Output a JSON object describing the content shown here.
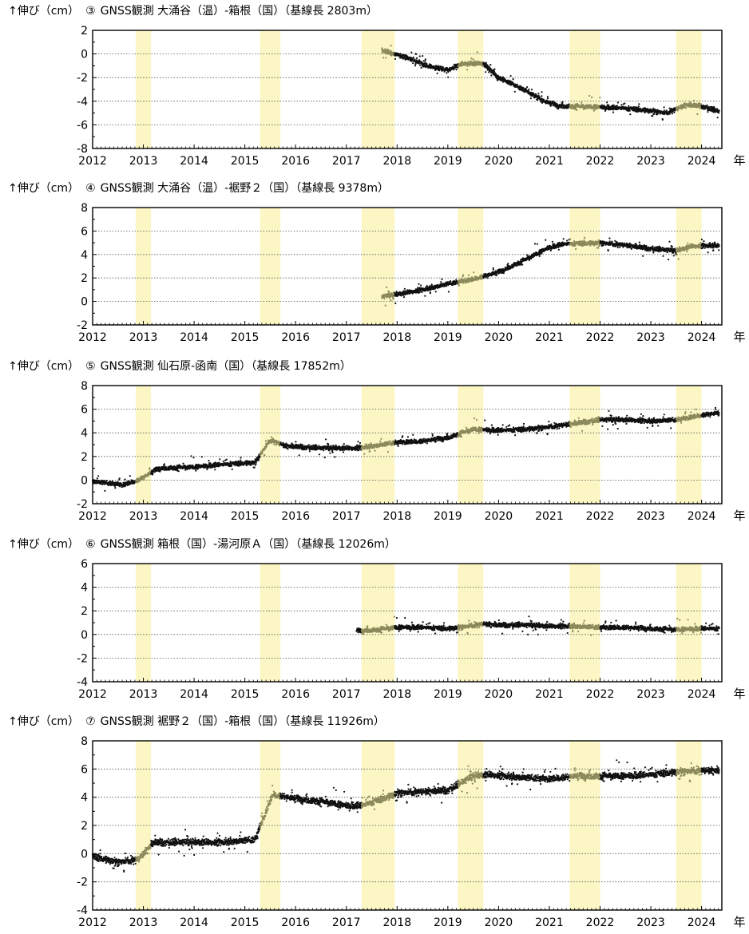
{
  "chart_data": [
    {
      "type": "scatter",
      "number": "③",
      "title": "GNSS観測 大涌谷（温）-箱根（国）（基線長 2803m）",
      "ylabel": "↑伸び（cm）",
      "xlabel": "年",
      "xlim": [
        2012,
        2024.4
      ],
      "ylim": [
        -8,
        2
      ],
      "yticks": [
        2,
        0,
        -2,
        -4,
        -6,
        -8
      ],
      "xticks": [
        2012,
        2013,
        2014,
        2015,
        2016,
        2017,
        2018,
        2019,
        2020,
        2021,
        2022,
        2023,
        2024
      ],
      "grid": "horizontal dotted",
      "highlight_periods": [
        [
          2012.85,
          2013.15
        ],
        [
          2015.3,
          2015.7
        ],
        [
          2017.3,
          2017.95
        ],
        [
          2019.2,
          2019.7
        ],
        [
          2021.4,
          2022.0
        ],
        [
          2023.5,
          2024.0
        ]
      ],
      "series": [
        {
          "trend": [
            [
              2017.7,
              0.3
            ],
            [
              2018.2,
              -0.3
            ],
            [
              2018.6,
              -1.0
            ],
            [
              2019.0,
              -1.4
            ],
            [
              2019.3,
              -0.8
            ],
            [
              2019.7,
              -0.8
            ],
            [
              2020.0,
              -2.0
            ],
            [
              2020.5,
              -3.0
            ],
            [
              2020.9,
              -4.0
            ],
            [
              2021.2,
              -4.4
            ],
            [
              2022.0,
              -4.5
            ],
            [
              2022.5,
              -4.6
            ],
            [
              2023.0,
              -4.8
            ],
            [
              2023.3,
              -5.0
            ],
            [
              2023.7,
              -4.3
            ],
            [
              2024.0,
              -4.4
            ],
            [
              2024.35,
              -4.9
            ]
          ]
        }
      ]
    },
    {
      "type": "scatter",
      "number": "④",
      "title": "GNSS観測 大涌谷（温）-裾野２（国）（基線長 9378m）",
      "ylabel": "↑伸び（cm）",
      "xlabel": "年",
      "xlim": [
        2012,
        2024.4
      ],
      "ylim": [
        -2,
        8
      ],
      "yticks": [
        8,
        6,
        4,
        2,
        0,
        -2
      ],
      "xticks": [
        2012,
        2013,
        2014,
        2015,
        2016,
        2017,
        2018,
        2019,
        2020,
        2021,
        2022,
        2023,
        2024
      ],
      "grid": "horizontal dotted",
      "highlight_periods": [
        [
          2012.85,
          2013.15
        ],
        [
          2015.3,
          2015.7
        ],
        [
          2017.3,
          2017.95
        ],
        [
          2019.2,
          2019.7
        ],
        [
          2021.4,
          2022.0
        ],
        [
          2023.5,
          2024.0
        ]
      ],
      "series": [
        {
          "trend": [
            [
              2017.7,
              0.4
            ],
            [
              2018.0,
              0.6
            ],
            [
              2018.5,
              1.0
            ],
            [
              2019.0,
              1.5
            ],
            [
              2019.5,
              1.9
            ],
            [
              2020.0,
              2.5
            ],
            [
              2020.5,
              3.5
            ],
            [
              2021.0,
              4.6
            ],
            [
              2021.3,
              4.9
            ],
            [
              2022.0,
              5.0
            ],
            [
              2022.5,
              4.8
            ],
            [
              2023.0,
              4.5
            ],
            [
              2023.5,
              4.3
            ],
            [
              2023.8,
              4.7
            ],
            [
              2024.35,
              4.8
            ]
          ]
        }
      ]
    },
    {
      "type": "scatter",
      "number": "⑤",
      "title": "GNSS観測 仙石原-函南（国）（基線長 17852m）",
      "ylabel": "↑伸び（cm）",
      "xlabel": "年",
      "xlim": [
        2012,
        2024.4
      ],
      "ylim": [
        -2,
        8
      ],
      "yticks": [
        8,
        6,
        4,
        2,
        0,
        -2
      ],
      "xticks": [
        2012,
        2013,
        2014,
        2015,
        2016,
        2017,
        2018,
        2019,
        2020,
        2021,
        2022,
        2023,
        2024
      ],
      "grid": "horizontal dotted",
      "highlight_periods": [
        [
          2012.85,
          2013.15
        ],
        [
          2015.3,
          2015.7
        ],
        [
          2017.3,
          2017.95
        ],
        [
          2019.2,
          2019.7
        ],
        [
          2021.4,
          2022.0
        ],
        [
          2023.5,
          2024.0
        ]
      ],
      "series": [
        {
          "trend": [
            [
              2012.0,
              -0.1
            ],
            [
              2012.6,
              -0.4
            ],
            [
              2012.9,
              0.0
            ],
            [
              2013.3,
              1.0
            ],
            [
              2014.0,
              1.1
            ],
            [
              2014.5,
              1.3
            ],
            [
              2015.2,
              1.5
            ],
            [
              2015.5,
              3.4
            ],
            [
              2015.8,
              2.9
            ],
            [
              2016.5,
              2.7
            ],
            [
              2017.2,
              2.7
            ],
            [
              2017.7,
              3.0
            ],
            [
              2018.0,
              3.2
            ],
            [
              2018.5,
              3.3
            ],
            [
              2019.0,
              3.6
            ],
            [
              2019.5,
              4.3
            ],
            [
              2020.0,
              4.2
            ],
            [
              2020.5,
              4.3
            ],
            [
              2021.0,
              4.5
            ],
            [
              2021.5,
              4.8
            ],
            [
              2022.0,
              5.1
            ],
            [
              2022.5,
              5.1
            ],
            [
              2023.0,
              5.0
            ],
            [
              2023.5,
              5.1
            ],
            [
              2024.0,
              5.5
            ],
            [
              2024.35,
              5.7
            ]
          ]
        }
      ]
    },
    {
      "type": "scatter",
      "number": "⑥",
      "title": "GNSS観測 箱根（国）-湯河原Ａ（国）（基線長 12026m）",
      "ylabel": "↑伸び（cm）",
      "xlabel": "年",
      "xlim": [
        2012,
        2024.4
      ],
      "ylim": [
        -4,
        6
      ],
      "yticks": [
        6,
        4,
        2,
        0,
        -2,
        -4
      ],
      "xticks": [
        2012,
        2013,
        2014,
        2015,
        2016,
        2017,
        2018,
        2019,
        2020,
        2021,
        2022,
        2023,
        2024
      ],
      "grid": "horizontal dotted",
      "highlight_periods": [
        [
          2012.85,
          2013.15
        ],
        [
          2015.3,
          2015.7
        ],
        [
          2017.3,
          2017.95
        ],
        [
          2019.2,
          2019.7
        ],
        [
          2021.4,
          2022.0
        ],
        [
          2023.5,
          2024.0
        ]
      ],
      "series": [
        {
          "trend": [
            [
              2017.2,
              0.3
            ],
            [
              2017.6,
              0.4
            ],
            [
              2018.0,
              0.6
            ],
            [
              2018.5,
              0.6
            ],
            [
              2019.0,
              0.5
            ],
            [
              2019.4,
              0.7
            ],
            [
              2019.7,
              0.9
            ],
            [
              2020.0,
              0.8
            ],
            [
              2020.5,
              0.8
            ],
            [
              2021.0,
              0.7
            ],
            [
              2021.5,
              0.7
            ],
            [
              2022.0,
              0.6
            ],
            [
              2022.5,
              0.6
            ],
            [
              2023.0,
              0.5
            ],
            [
              2023.5,
              0.4
            ],
            [
              2024.0,
              0.5
            ],
            [
              2024.35,
              0.5
            ]
          ]
        }
      ]
    },
    {
      "type": "scatter",
      "number": "⑦",
      "title": "GNSS観測 裾野２（国）-箱根（国）（基線長 11926m）",
      "ylabel": "↑伸び（cm）",
      "xlabel": "年",
      "xlim": [
        2012,
        2024.4
      ],
      "ylim": [
        -4,
        8
      ],
      "yticks": [
        8,
        6,
        4,
        2,
        0,
        -2,
        -4
      ],
      "xticks": [
        2012,
        2013,
        2014,
        2015,
        2016,
        2017,
        2018,
        2019,
        2020,
        2021,
        2022,
        2023,
        2024
      ],
      "grid": "horizontal dotted",
      "highlight_periods": [
        [
          2012.85,
          2013.15
        ],
        [
          2015.3,
          2015.7
        ],
        [
          2017.3,
          2017.95
        ],
        [
          2019.2,
          2019.7
        ],
        [
          2021.4,
          2022.0
        ],
        [
          2023.5,
          2024.0
        ]
      ],
      "series": [
        {
          "trend": [
            [
              2012.0,
              -0.2
            ],
            [
              2012.5,
              -0.6
            ],
            [
              2012.9,
              -0.4
            ],
            [
              2013.2,
              0.8
            ],
            [
              2013.6,
              0.8
            ],
            [
              2014.0,
              0.8
            ],
            [
              2014.5,
              0.8
            ],
            [
              2015.2,
              1.0
            ],
            [
              2015.55,
              4.2
            ],
            [
              2016.0,
              3.9
            ],
            [
              2016.5,
              3.7
            ],
            [
              2017.0,
              3.4
            ],
            [
              2017.3,
              3.4
            ],
            [
              2017.8,
              4.0
            ],
            [
              2018.0,
              4.3
            ],
            [
              2018.5,
              4.4
            ],
            [
              2019.0,
              4.5
            ],
            [
              2019.5,
              5.5
            ],
            [
              2019.8,
              5.6
            ],
            [
              2020.5,
              5.4
            ],
            [
              2021.0,
              5.3
            ],
            [
              2021.5,
              5.5
            ],
            [
              2022.0,
              5.5
            ],
            [
              2022.5,
              5.5
            ],
            [
              2023.0,
              5.6
            ],
            [
              2023.5,
              5.8
            ],
            [
              2024.0,
              5.9
            ],
            [
              2024.35,
              5.9
            ]
          ]
        }
      ]
    }
  ],
  "colors": {
    "highlight_band": "#fbf6c4",
    "point_normal": "#111111",
    "point_highlight": "#8c8a5c",
    "axis": "#000000",
    "grid": "#555555"
  }
}
